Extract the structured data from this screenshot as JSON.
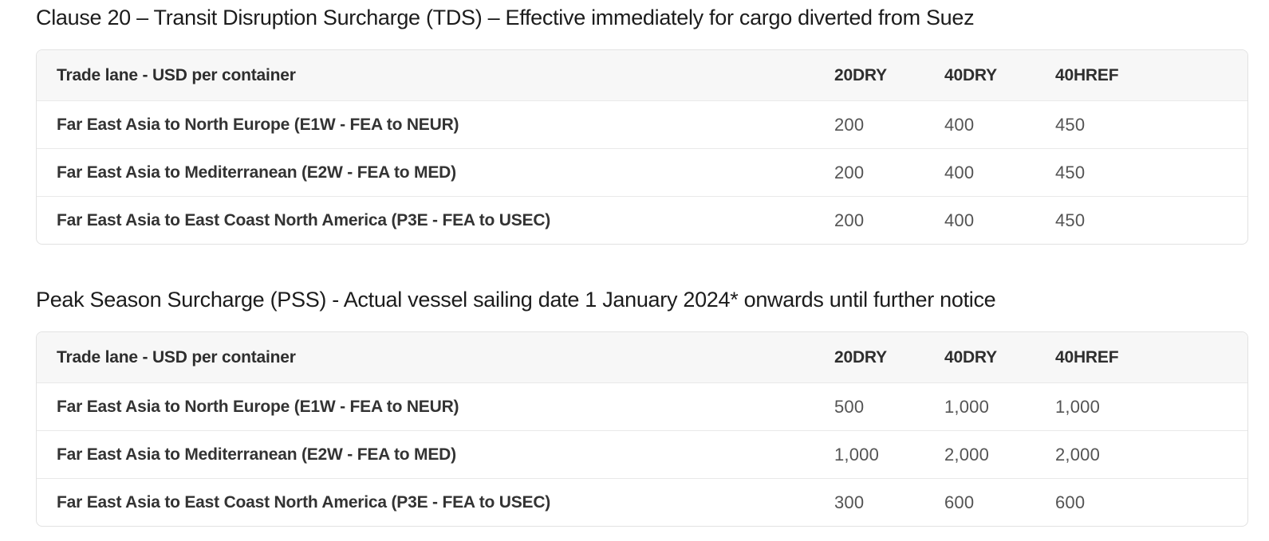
{
  "colors": {
    "page_background": "#ffffff",
    "title_text": "#1c1c1c",
    "header_background": "#f7f7f7",
    "header_text": "#2e2e2e",
    "row_label_text": "#333333",
    "value_text": "#545454",
    "border": "#e2e2e2"
  },
  "sections": [
    {
      "title": "Clause 20 – Transit Disruption Surcharge (TDS) – Effective immediately for cargo diverted from Suez",
      "table": {
        "headers": [
          "Trade lane - USD per container",
          "20DRY",
          "40DRY",
          "40HREF"
        ],
        "rows": [
          {
            "label": "Far East Asia to North Europe (E1W - FEA to NEUR)",
            "values": [
              "200",
              "400",
              "450"
            ]
          },
          {
            "label": "Far East Asia to Mediterranean (E2W - FEA to MED)",
            "values": [
              "200",
              "400",
              "450"
            ]
          },
          {
            "label": "Far East Asia to East Coast North America (P3E - FEA to USEC)",
            "values": [
              "200",
              "400",
              "450"
            ]
          }
        ]
      }
    },
    {
      "title": "Peak Season Surcharge (PSS) - Actual vessel sailing date 1 January 2024* onwards until further notice",
      "table": {
        "headers": [
          "Trade lane - USD per container",
          "20DRY",
          "40DRY",
          "40HREF"
        ],
        "rows": [
          {
            "label": "Far East Asia to North Europe (E1W - FEA to NEUR)",
            "values": [
              "500",
              "1,000",
              "1,000"
            ]
          },
          {
            "label": "Far East Asia to Mediterranean (E2W - FEA to MED)",
            "values": [
              "1,000",
              "2,000",
              "2,000"
            ]
          },
          {
            "label": "Far East Asia to East Coast North America (P3E - FEA to USEC)",
            "values": [
              "300",
              "600",
              "600"
            ]
          }
        ]
      }
    }
  ]
}
